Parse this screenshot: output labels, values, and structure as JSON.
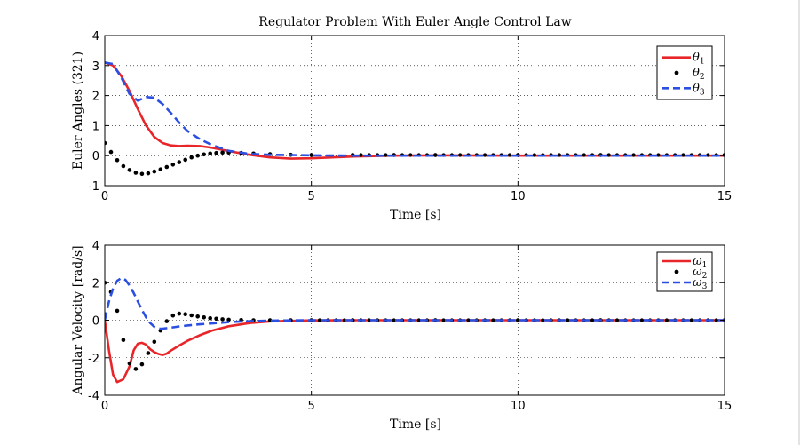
{
  "figure": {
    "title": "Regulator Problem With Euler Angle Control Law"
  },
  "chart_data": [
    {
      "type": "line",
      "title": "Regulator Problem With Euler Angle Control Law",
      "xlabel": "Time [s]",
      "ylabel": "Euler Angles (321)",
      "xlim": [
        0,
        15
      ],
      "ylim": [
        -1,
        4
      ],
      "xticks": [
        0,
        5,
        10,
        15
      ],
      "xtick_labels": [
        "0",
        "5",
        "10",
        "15"
      ],
      "yticks": [
        -1,
        0,
        1,
        2,
        3,
        4
      ],
      "ytick_labels": [
        "-1",
        "0",
        "1",
        "2",
        "3",
        "4"
      ],
      "grid": true,
      "legend": "top-right",
      "series": [
        {
          "name": "θ1",
          "legend_main": "θ",
          "legend_sub": "1",
          "style": "solid",
          "color": "#e8262a",
          "x": [
            0,
            0.2,
            0.4,
            0.6,
            0.8,
            1.0,
            1.2,
            1.4,
            1.6,
            1.8,
            2.0,
            2.3,
            2.6,
            3.0,
            3.5,
            4.0,
            4.5,
            5.0,
            5.5,
            6.0,
            7.0,
            8.0,
            10.0,
            12.0,
            15.0
          ],
          "y": [
            3.1,
            3.0,
            2.65,
            2.15,
            1.55,
            1.0,
            0.62,
            0.42,
            0.34,
            0.32,
            0.33,
            0.32,
            0.26,
            0.15,
            0.03,
            -0.06,
            -0.1,
            -0.09,
            -0.06,
            -0.03,
            0.0,
            0.01,
            0.0,
            0.0,
            0.0
          ]
        },
        {
          "name": "θ2",
          "legend_main": "θ",
          "legend_sub": "2",
          "style": "dotted",
          "color": "#000000",
          "x": [
            0,
            0.15,
            0.3,
            0.45,
            0.6,
            0.75,
            0.9,
            1.05,
            1.2,
            1.35,
            1.5,
            1.65,
            1.8,
            1.95,
            2.1,
            2.25,
            2.4,
            2.55,
            2.7,
            2.85,
            3.0,
            3.3,
            3.6,
            4.0,
            4.5,
            5.0,
            6.0,
            7.0,
            8.0,
            10.0,
            12.0,
            15.0
          ],
          "y": [
            0.42,
            0.12,
            -0.15,
            -0.35,
            -0.48,
            -0.57,
            -0.61,
            -0.59,
            -0.53,
            -0.46,
            -0.38,
            -0.3,
            -0.22,
            -0.14,
            -0.06,
            0.0,
            0.04,
            0.07,
            0.09,
            0.1,
            0.1,
            0.09,
            0.07,
            0.05,
            0.03,
            0.02,
            0.02,
            0.02,
            0.02,
            0.02,
            0.02,
            0.02
          ]
        },
        {
          "name": "θ3",
          "legend_main": "θ",
          "legend_sub": "3",
          "style": "dashed",
          "color": "#2b4fe0",
          "x": [
            0,
            0.2,
            0.4,
            0.6,
            0.8,
            1.0,
            1.2,
            1.4,
            1.6,
            1.8,
            2.0,
            2.3,
            2.6,
            3.0,
            3.5,
            4.0,
            4.5,
            5.0,
            6.0,
            8.0,
            10.0,
            12.0,
            15.0
          ],
          "y": [
            3.1,
            3.05,
            2.6,
            2.05,
            1.83,
            1.95,
            1.93,
            1.72,
            1.42,
            1.1,
            0.82,
            0.55,
            0.35,
            0.16,
            0.06,
            0.03,
            0.02,
            0.01,
            0.0,
            0.0,
            0.0,
            0.0,
            0.0
          ]
        }
      ]
    },
    {
      "type": "line",
      "title": "",
      "xlabel": "Time [s]",
      "ylabel": "Angular Velocity [rad/s]",
      "xlim": [
        0,
        15
      ],
      "ylim": [
        -4,
        4
      ],
      "xticks": [
        0,
        5,
        10,
        15
      ],
      "xtick_labels": [
        "0",
        "5",
        "10",
        "15"
      ],
      "yticks": [
        -4,
        -2,
        0,
        2,
        4
      ],
      "ytick_labels": [
        "-4",
        "-2",
        "0",
        "2",
        "4"
      ],
      "grid": true,
      "legend": "top-right",
      "series": [
        {
          "name": "ω1",
          "legend_main": "ω",
          "legend_sub": "1",
          "style": "solid",
          "color": "#e8262a",
          "x": [
            0,
            0.1,
            0.2,
            0.3,
            0.45,
            0.6,
            0.7,
            0.8,
            0.9,
            1.0,
            1.1,
            1.2,
            1.3,
            1.4,
            1.5,
            1.6,
            1.8,
            2.0,
            2.3,
            2.6,
            3.0,
            3.5,
            4.0,
            5.0,
            6.0,
            8.0,
            10.0,
            15.0
          ],
          "y": [
            0,
            -1.6,
            -2.9,
            -3.3,
            -3.15,
            -2.45,
            -1.6,
            -1.25,
            -1.2,
            -1.3,
            -1.55,
            -1.7,
            -1.8,
            -1.85,
            -1.78,
            -1.62,
            -1.35,
            -1.1,
            -0.8,
            -0.55,
            -0.32,
            -0.15,
            -0.06,
            -0.01,
            0.0,
            0.0,
            0.0,
            0.0
          ]
        },
        {
          "name": "ω2",
          "legend_main": "ω",
          "legend_sub": "2",
          "style": "dotted",
          "color": "#000000",
          "x": [
            0,
            0.15,
            0.3,
            0.45,
            0.6,
            0.75,
            0.9,
            1.05,
            1.2,
            1.35,
            1.5,
            1.65,
            1.8,
            1.95,
            2.1,
            2.25,
            2.4,
            2.55,
            2.7,
            2.85,
            3.0,
            3.3,
            3.6,
            4.0,
            4.5,
            5.0,
            6.0,
            8.0,
            10.0,
            12.0,
            15.0
          ],
          "y": [
            2.0,
            1.5,
            0.5,
            -1.05,
            -2.3,
            -2.6,
            -2.35,
            -1.75,
            -1.15,
            -0.55,
            -0.05,
            0.25,
            0.35,
            0.32,
            0.26,
            0.2,
            0.15,
            0.11,
            0.08,
            0.05,
            0.03,
            0.01,
            0.0,
            0.0,
            0.0,
            0.0,
            0.0,
            0.0,
            0.0,
            0.0,
            0.0
          ]
        },
        {
          "name": "ω3",
          "legend_main": "ω",
          "legend_sub": "3",
          "style": "dashed",
          "color": "#2b4fe0",
          "x": [
            0,
            0.1,
            0.2,
            0.3,
            0.4,
            0.5,
            0.6,
            0.7,
            0.8,
            0.9,
            1.0,
            1.1,
            1.2,
            1.3,
            1.4,
            1.6,
            1.8,
            2.0,
            2.3,
            2.6,
            3.0,
            3.5,
            4.0,
            5.0,
            8.0,
            15.0
          ],
          "y": [
            0,
            1.0,
            1.7,
            2.1,
            2.25,
            2.15,
            1.85,
            1.45,
            1.0,
            0.55,
            0.15,
            -0.15,
            -0.35,
            -0.45,
            -0.45,
            -0.4,
            -0.33,
            -0.28,
            -0.22,
            -0.17,
            -0.1,
            -0.05,
            -0.02,
            0.0,
            0.0,
            0.0
          ]
        }
      ]
    }
  ]
}
